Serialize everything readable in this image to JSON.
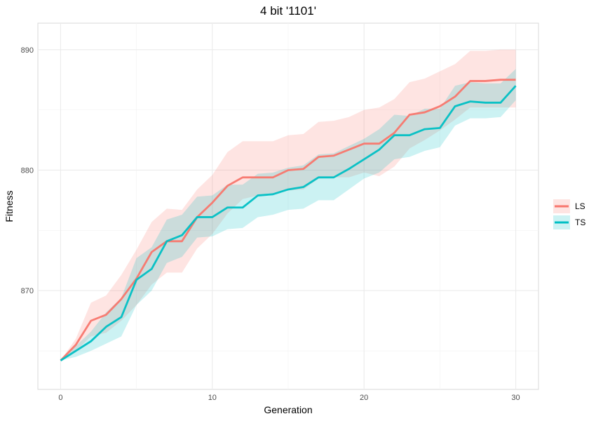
{
  "chart_data": {
    "type": "line",
    "title": "4 bit '1101'",
    "xlabel": "Generation",
    "ylabel": "Fitness",
    "xlim": [
      -1.5,
      31.5
    ],
    "ylim": [
      861.8,
      892.2
    ],
    "x_ticks": [
      0,
      10,
      20,
      30
    ],
    "x_tick_labels": [
      "0",
      "10",
      "20",
      "30"
    ],
    "y_ticks": [
      870,
      880,
      890
    ],
    "y_tick_labels": [
      "870",
      "880",
      "890"
    ],
    "grid": true,
    "legend_position": "right",
    "x": [
      0,
      1,
      2,
      3,
      4,
      5,
      6,
      7,
      8,
      9,
      10,
      11,
      12,
      13,
      14,
      15,
      16,
      17,
      18,
      19,
      20,
      21,
      22,
      23,
      24,
      25,
      26,
      27,
      28,
      29,
      30
    ],
    "series": [
      {
        "name": "LS",
        "color": "#F8766D",
        "values": [
          864.2,
          865.5,
          867.5,
          868.0,
          869.3,
          871.0,
          873.2,
          874.1,
          874.1,
          876.1,
          877.3,
          878.7,
          879.4,
          879.4,
          879.4,
          880.0,
          880.1,
          881.1,
          881.2,
          881.7,
          882.2,
          882.2,
          883.1,
          884.6,
          884.8,
          885.3,
          886.1,
          887.4,
          887.4,
          887.5,
          887.5
        ],
        "ci_low": [
          864.2,
          865.0,
          866.2,
          866.5,
          867.5,
          868.8,
          870.5,
          871.5,
          871.5,
          873.5,
          874.7,
          876.4,
          877.6,
          877.9,
          878.0,
          878.3,
          878.4,
          879.3,
          879.4,
          879.4,
          879.8,
          879.5,
          880.3,
          881.8,
          882.5,
          883.3,
          884.2,
          885.2,
          885.2,
          885.2,
          885.2
        ],
        "ci_high": [
          864.2,
          866.0,
          869.0,
          869.6,
          871.3,
          873.4,
          875.7,
          876.8,
          876.7,
          878.4,
          879.6,
          881.5,
          882.4,
          882.4,
          882.4,
          882.9,
          883.0,
          884.0,
          884.1,
          884.4,
          885.0,
          885.2,
          885.9,
          887.3,
          887.6,
          888.2,
          888.8,
          889.9,
          889.9,
          890.0,
          890.0
        ]
      },
      {
        "name": "TS",
        "color": "#00BFC4",
        "values": [
          864.2,
          865.0,
          865.8,
          867.0,
          867.8,
          870.9,
          871.8,
          874.1,
          874.6,
          876.1,
          876.1,
          876.9,
          876.9,
          877.9,
          878.0,
          878.4,
          878.6,
          879.4,
          879.4,
          880.1,
          880.9,
          881.7,
          882.9,
          882.9,
          883.4,
          883.5,
          885.3,
          885.7,
          885.6,
          885.6,
          887.0
        ],
        "ci_low": [
          864.2,
          864.5,
          865.0,
          865.6,
          866.2,
          868.8,
          870.0,
          872.3,
          872.8,
          874.4,
          874.5,
          875.1,
          875.2,
          876.1,
          876.3,
          876.7,
          876.8,
          877.5,
          877.5,
          878.4,
          879.3,
          879.8,
          880.9,
          881.1,
          881.6,
          881.9,
          883.7,
          884.3,
          884.3,
          884.4,
          885.8
        ],
        "ci_high": [
          864.2,
          865.4,
          866.6,
          868.2,
          869.4,
          872.7,
          873.6,
          875.9,
          876.3,
          877.8,
          877.9,
          878.8,
          878.8,
          879.7,
          879.8,
          880.2,
          880.4,
          881.3,
          881.4,
          882.0,
          882.6,
          883.4,
          884.6,
          884.5,
          885.1,
          885.1,
          887.0,
          887.3,
          887.2,
          887.2,
          888.4
        ]
      }
    ]
  }
}
